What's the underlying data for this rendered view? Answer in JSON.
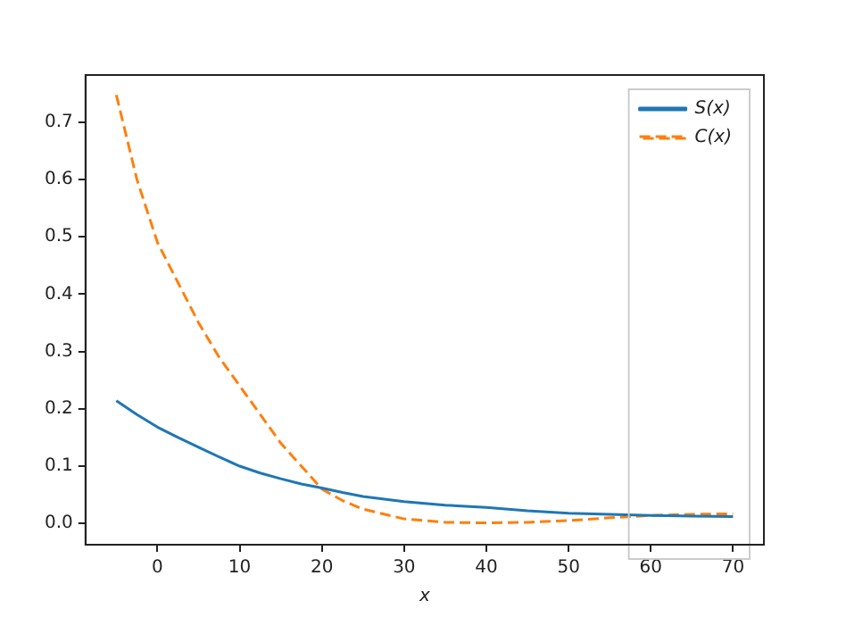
{
  "chart_data": {
    "type": "line",
    "xlabel": "x",
    "x": [
      -5,
      -2.5,
      0,
      2.5,
      5,
      7.5,
      10,
      12.5,
      15,
      17.5,
      20,
      22.5,
      25,
      30,
      35,
      40,
      45,
      50,
      55,
      60,
      65,
      70
    ],
    "series": [
      {
        "name": "S(x)",
        "color": "#1f77b4",
        "line_style": "solid",
        "values": [
          0.214,
          0.19,
          0.168,
          0.15,
          0.133,
          0.116,
          0.1,
          0.088,
          0.078,
          0.069,
          0.062,
          0.054,
          0.047,
          0.038,
          0.032,
          0.028,
          0.022,
          0.018,
          0.016,
          0.014,
          0.013,
          0.012
        ]
      },
      {
        "name": "C(x)",
        "color": "#ff7f0e",
        "line_style": "dashed",
        "values": [
          0.747,
          0.6,
          0.49,
          0.42,
          0.35,
          0.29,
          0.24,
          0.19,
          0.14,
          0.1,
          0.06,
          0.04,
          0.025,
          0.008,
          0.002,
          0.001,
          0.002,
          0.005,
          0.01,
          0.014,
          0.016,
          0.017
        ]
      }
    ],
    "xlim": [
      -8.75,
      73.75
    ],
    "ylim": [
      -0.037,
      0.782
    ],
    "xticks": [
      0,
      10,
      20,
      30,
      40,
      50,
      60,
      70
    ],
    "yticks": [
      {
        "value": 0,
        "label": "0.0"
      },
      {
        "value": 0.1,
        "label": "0.1"
      },
      {
        "value": 0.2,
        "label": "0.2"
      },
      {
        "value": 0.3,
        "label": "0.3"
      },
      {
        "value": 0.4,
        "label": "0.4"
      },
      {
        "value": 0.5,
        "label": "0.5"
      },
      {
        "value": 0.6,
        "label": "0.6"
      },
      {
        "value": 0.7,
        "label": "0.7"
      }
    ],
    "grid": false,
    "legend": "top right",
    "marker": "none"
  }
}
